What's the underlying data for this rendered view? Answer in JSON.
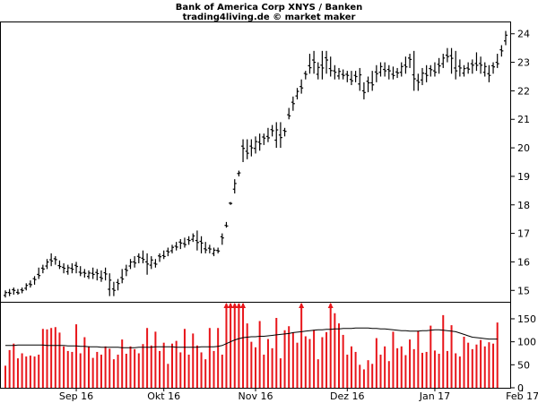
{
  "chart_data": [
    {
      "type": "bar",
      "title": "Bank of America Corp XNYS / Banken",
      "subtitle": "trading4living.de © market maker",
      "y_axis_side": "right",
      "yticks": [
        15,
        16,
        17,
        18,
        19,
        20,
        21,
        22,
        23,
        24
      ],
      "ylim": [
        14.6,
        24.4
      ],
      "xlabels": [
        "Sep 16",
        "Okt 16",
        "Nov 16",
        "Dez 16",
        "Jan 17",
        "Feb 17"
      ],
      "xlabel_index": [
        17,
        38,
        60,
        82,
        103,
        124
      ],
      "grid": false,
      "ohlc_style": "open-high-low-close bars",
      "colors": {
        "bars": "#000000"
      },
      "highs": [
        15.0,
        15.05,
        15.1,
        15.05,
        15.1,
        15.25,
        15.35,
        15.5,
        15.8,
        15.9,
        16.1,
        16.3,
        16.2,
        16.05,
        15.95,
        15.9,
        15.95,
        16.0,
        15.85,
        15.75,
        15.7,
        15.8,
        15.75,
        15.7,
        15.8,
        15.6,
        15.3,
        15.4,
        15.75,
        15.9,
        16.1,
        16.2,
        16.3,
        16.4,
        16.3,
        16.2,
        16.1,
        16.3,
        16.4,
        16.5,
        16.6,
        16.7,
        16.8,
        16.85,
        16.9,
        17.0,
        17.1,
        16.9,
        16.7,
        16.6,
        16.5,
        16.5,
        17.0,
        17.4,
        18.1,
        18.9,
        19.0,
        20.3,
        20.3,
        20.3,
        20.4,
        20.5,
        20.5,
        20.7,
        20.8,
        20.9,
        20.9,
        20.7,
        21.4,
        21.8,
        22.1,
        22.4,
        22.7,
        23.3,
        23.4,
        23.0,
        23.4,
        23.4,
        23.2,
        22.9,
        22.8,
        22.75,
        22.7,
        22.7,
        22.7,
        22.8,
        22.3,
        22.5,
        22.7,
        22.9,
        23.0,
        23.0,
        22.9,
        22.85,
        22.8,
        23.0,
        23.2,
        23.3,
        23.4,
        22.6,
        22.8,
        22.9,
        22.9,
        23.0,
        23.15,
        23.3,
        23.5,
        23.5,
        23.4,
        23.1,
        22.9,
        23.0,
        23.1,
        23.35,
        23.2,
        23.0,
        22.9,
        23.0,
        23.3,
        23.6,
        24.1
      ],
      "lows": [
        14.75,
        14.8,
        14.85,
        14.85,
        14.9,
        15.0,
        15.1,
        15.2,
        15.4,
        15.6,
        15.75,
        15.85,
        15.9,
        15.75,
        15.6,
        15.55,
        15.6,
        15.6,
        15.5,
        15.45,
        15.4,
        15.4,
        15.35,
        15.3,
        15.35,
        14.8,
        14.8,
        15.0,
        15.25,
        15.5,
        15.75,
        15.8,
        15.95,
        15.95,
        15.55,
        15.75,
        15.8,
        16.0,
        16.1,
        16.2,
        16.3,
        16.4,
        16.45,
        16.5,
        16.6,
        16.7,
        16.4,
        16.3,
        16.3,
        16.3,
        16.2,
        16.3,
        16.6,
        17.2,
        18.0,
        18.4,
        19.2,
        19.5,
        19.6,
        19.7,
        19.8,
        19.9,
        20.1,
        20.2,
        20.4,
        20.0,
        20.0,
        20.4,
        21.0,
        21.3,
        21.7,
        21.9,
        22.4,
        22.6,
        22.6,
        22.4,
        22.4,
        22.6,
        22.5,
        22.4,
        22.4,
        22.4,
        22.3,
        22.2,
        22.3,
        22.0,
        21.7,
        21.95,
        22.0,
        22.3,
        22.5,
        22.5,
        22.4,
        22.4,
        22.45,
        22.5,
        22.6,
        22.8,
        22.0,
        22.0,
        22.2,
        22.3,
        22.5,
        22.5,
        22.6,
        22.8,
        23.0,
        22.6,
        22.4,
        22.5,
        22.5,
        22.6,
        22.6,
        22.7,
        22.6,
        22.5,
        22.3,
        22.6,
        22.8,
        23.2,
        23.6
      ]
    },
    {
      "type": "bar",
      "yticks": [
        0,
        50,
        100,
        150
      ],
      "ylim": [
        0,
        185
      ],
      "colors": {
        "bars": "#e8151a",
        "average": "#000000",
        "clipped_marker": "#e8151a"
      },
      "clip_value": 185,
      "volumes": [
        48,
        82,
        96,
        64,
        75,
        68,
        70,
        68,
        72,
        128,
        127,
        130,
        132,
        120,
        90,
        80,
        78,
        138,
        75,
        110,
        90,
        65,
        78,
        72,
        90,
        85,
        62,
        72,
        105,
        74,
        90,
        84,
        75,
        95,
        130,
        92,
        122,
        80,
        98,
        52,
        96,
        102,
        77,
        128,
        72,
        118,
        92,
        77,
        62,
        130,
        80,
        130,
        72,
        190,
        190,
        190,
        190,
        185,
        140,
        100,
        88,
        145,
        72,
        106,
        86,
        152,
        64,
        125,
        134,
        120,
        98,
        190,
        112,
        106,
        126,
        62,
        110,
        121,
        190,
        162,
        140,
        115,
        72,
        90,
        78,
        50,
        40,
        60,
        52,
        108,
        72,
        90,
        58,
        122,
        86,
        90,
        71,
        105,
        84,
        124,
        76,
        78,
        135,
        81,
        74,
        158,
        80,
        136,
        75,
        68,
        111,
        98,
        84,
        94,
        104,
        90,
        99,
        96,
        142
      ],
      "average": [
        92,
        92,
        92,
        93,
        93,
        93,
        93,
        93,
        93,
        93,
        92,
        92,
        92,
        92,
        92,
        91,
        91,
        91,
        90,
        90,
        89,
        89,
        89,
        88,
        88,
        88,
        88,
        88,
        87,
        87,
        87,
        87,
        88,
        88,
        88,
        88,
        89,
        89,
        89,
        89,
        89,
        88,
        88,
        88,
        88,
        88,
        88,
        89,
        89,
        89,
        89,
        90,
        92,
        96,
        100,
        104,
        107,
        109,
        110,
        111,
        111,
        112,
        112,
        113,
        114,
        115,
        116,
        117,
        118,
        120,
        121,
        122,
        123,
        124,
        125,
        126,
        126,
        127,
        127,
        128,
        128,
        129,
        129,
        129,
        130,
        130,
        130,
        130,
        129,
        129,
        128,
        128,
        127,
        126,
        125,
        124,
        124,
        123,
        123,
        123,
        124,
        124,
        125,
        126,
        126,
        125,
        124,
        123,
        122,
        119,
        116,
        113,
        110,
        109,
        108,
        107,
        106,
        106,
        106
      ]
    }
  ]
}
